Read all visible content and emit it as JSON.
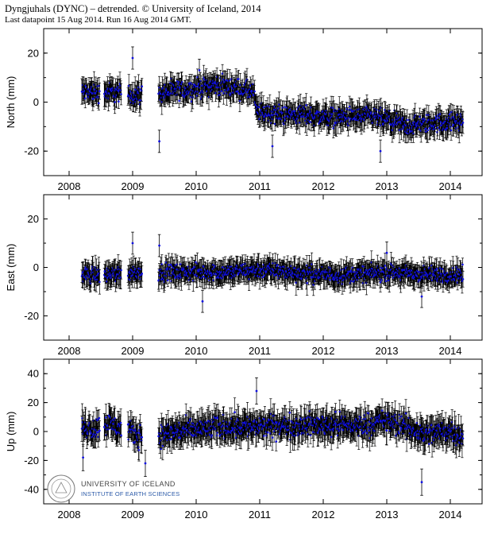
{
  "header": {
    "title": "Dyngjuhals (DYNC) – detrended. © University of Iceland, 2014",
    "subtitle": "Last datapoint 15 Aug 2014. Run 16 Aug 2014 GMT."
  },
  "logo": {
    "name": "UNIVERSITY OF ICELAND",
    "department": "INSTITUTE OF EARTH SCIENCES",
    "seal_icon": "university-seal-icon"
  },
  "colors": {
    "points": "#1010e0",
    "error_bars": "#000000",
    "frame": "#000000"
  },
  "chart_data": [
    {
      "type": "scatter",
      "ylabel": "North (mm)",
      "xlim": [
        2007.6,
        2014.5
      ],
      "ylim": [
        -30,
        30
      ],
      "yticks": [
        -20,
        0,
        20
      ],
      "xticks": [
        2008,
        2009,
        2010,
        2011,
        2012,
        2013,
        2014
      ],
      "grid": false,
      "error_bars": true,
      "series": [
        {
          "trend_x": [
            2008.2,
            2008.5,
            2008.7,
            2009.0,
            2009.2,
            2009.5,
            2009.8,
            2010.1,
            2010.3,
            2010.6,
            2010.9,
            2010.95,
            2011.3,
            2011.7,
            2012.0,
            2012.4,
            2012.8,
            2013.1,
            2013.3,
            2013.6,
            2014.0,
            2014.2
          ],
          "trend_y": [
            4,
            4,
            4,
            3,
            3,
            4,
            5,
            6,
            7,
            6,
            4,
            -4,
            -5,
            -5,
            -6,
            -6,
            -6,
            -8,
            -10,
            -9,
            -8,
            -8
          ],
          "gaps": [
            [
              2008.48,
              2008.55
            ],
            [
              2008.82,
              2008.92
            ],
            [
              2009.15,
              2009.4
            ]
          ],
          "spread": 3.5,
          "error_bar": 3.5,
          "outliers": [
            [
              2009.0,
              18
            ],
            [
              2009.42,
              -16
            ],
            [
              2010.05,
              13
            ],
            [
              2011.2,
              -18
            ],
            [
              2012.9,
              -20
            ]
          ]
        }
      ]
    },
    {
      "type": "scatter",
      "ylabel": "East (mm)",
      "xlim": [
        2007.6,
        2014.5
      ],
      "ylim": [
        -30,
        30
      ],
      "yticks": [
        -20,
        0,
        20
      ],
      "xticks": [
        2008,
        2009,
        2010,
        2011,
        2012,
        2013,
        2014
      ],
      "grid": false,
      "error_bars": true,
      "series": [
        {
          "trend_x": [
            2008.2,
            2008.6,
            2009.0,
            2009.5,
            2010.0,
            2010.5,
            2011.0,
            2011.5,
            2012.0,
            2012.5,
            2013.0,
            2013.5,
            2014.0,
            2014.2
          ],
          "trend_y": [
            -3,
            -3,
            -2,
            -2,
            -2,
            -2,
            -1,
            -2,
            -3,
            -3,
            -2,
            -3,
            -3,
            -3
          ],
          "gaps": [
            [
              2008.48,
              2008.55
            ],
            [
              2008.82,
              2008.92
            ],
            [
              2009.15,
              2009.4
            ]
          ],
          "spread": 3,
          "error_bar": 3.5,
          "outliers": [
            [
              2009.0,
              10
            ],
            [
              2009.42,
              9
            ],
            [
              2010.1,
              -14
            ],
            [
              2013.0,
              6
            ],
            [
              2013.55,
              -12
            ]
          ]
        }
      ]
    },
    {
      "type": "scatter",
      "ylabel": "Up (mm)",
      "xlim": [
        2007.6,
        2014.5
      ],
      "ylim": [
        -50,
        50
      ],
      "yticks": [
        -40,
        -20,
        0,
        20,
        40
      ],
      "xticks": [
        2008,
        2009,
        2010,
        2011,
        2012,
        2013,
        2014
      ],
      "grid": false,
      "error_bars": true,
      "series": [
        {
          "trend_x": [
            2008.2,
            2008.4,
            2008.6,
            2008.85,
            2009.0,
            2009.4,
            2009.7,
            2010.0,
            2010.5,
            2011.0,
            2011.5,
            2012.0,
            2012.5,
            2013.0,
            2013.3,
            2013.6,
            2014.0,
            2014.2
          ],
          "trend_y": [
            3,
            2,
            6,
            2,
            -2,
            -3,
            0,
            1,
            4,
            3,
            4,
            5,
            4,
            7,
            3,
            -2,
            1,
            -3
          ],
          "gaps": [
            [
              2008.48,
              2008.55
            ],
            [
              2008.82,
              2008.92
            ],
            [
              2009.15,
              2009.4
            ]
          ],
          "spread": 7,
          "error_bar": 7,
          "outliers": [
            [
              2008.22,
              -18
            ],
            [
              2009.2,
              -22
            ],
            [
              2010.95,
              28
            ],
            [
              2013.55,
              -35
            ]
          ]
        }
      ]
    }
  ]
}
